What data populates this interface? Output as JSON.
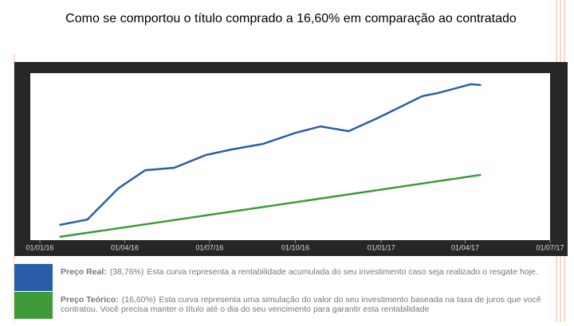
{
  "chart_data": {
    "type": "line",
    "title": "Como se comportou o título comprado a 16,60% em comparação ao contratado",
    "xlim": [
      0,
      547
    ],
    "xticks": [
      {
        "value": 0,
        "label": "01/01/16"
      },
      {
        "value": 91,
        "label": "01/04/16"
      },
      {
        "value": 182,
        "label": "01/07/16"
      },
      {
        "value": 274,
        "label": "01/10/16"
      },
      {
        "value": 366,
        "label": "01/01/17"
      },
      {
        "value": 456,
        "label": "01/04/17"
      },
      {
        "value": 547,
        "label": "01/07/17"
      }
    ],
    "ylim": [
      0,
      100
    ],
    "series": [
      {
        "name": "Preço Real:",
        "percent": "(38,76%)",
        "description": "Esta curva representa a rentabilidade acumulada do seu investimento caso seja realizado o resgate hoje.",
        "color": "#2a5caa",
        "x": [
          21,
          51,
          84,
          113,
          144,
          178,
          205,
          239,
          274,
          301,
          331,
          363,
          410,
          427,
          449,
          462,
          473
        ],
        "values": [
          8.2,
          11.5,
          30.3,
          41.3,
          42.8,
          50.5,
          53.8,
          57.2,
          63.9,
          67.8,
          64.9,
          73.1,
          86.1,
          88.0,
          91.3,
          93.3,
          92.8
        ]
      },
      {
        "name": "Preço Teórico:",
        "percent": "(16,60%)",
        "description": "Esta curva representa uma simulação do valor do seu investimento baseada na taxa de juros que você contratou. Você precisa manter o título até o dia do seu vencimento para garantir esta rentabilidade",
        "color": "#3f9a3a",
        "x": [
          21,
          247,
          473
        ],
        "values": [
          1.0,
          19.7,
          38.5
        ]
      }
    ]
  }
}
